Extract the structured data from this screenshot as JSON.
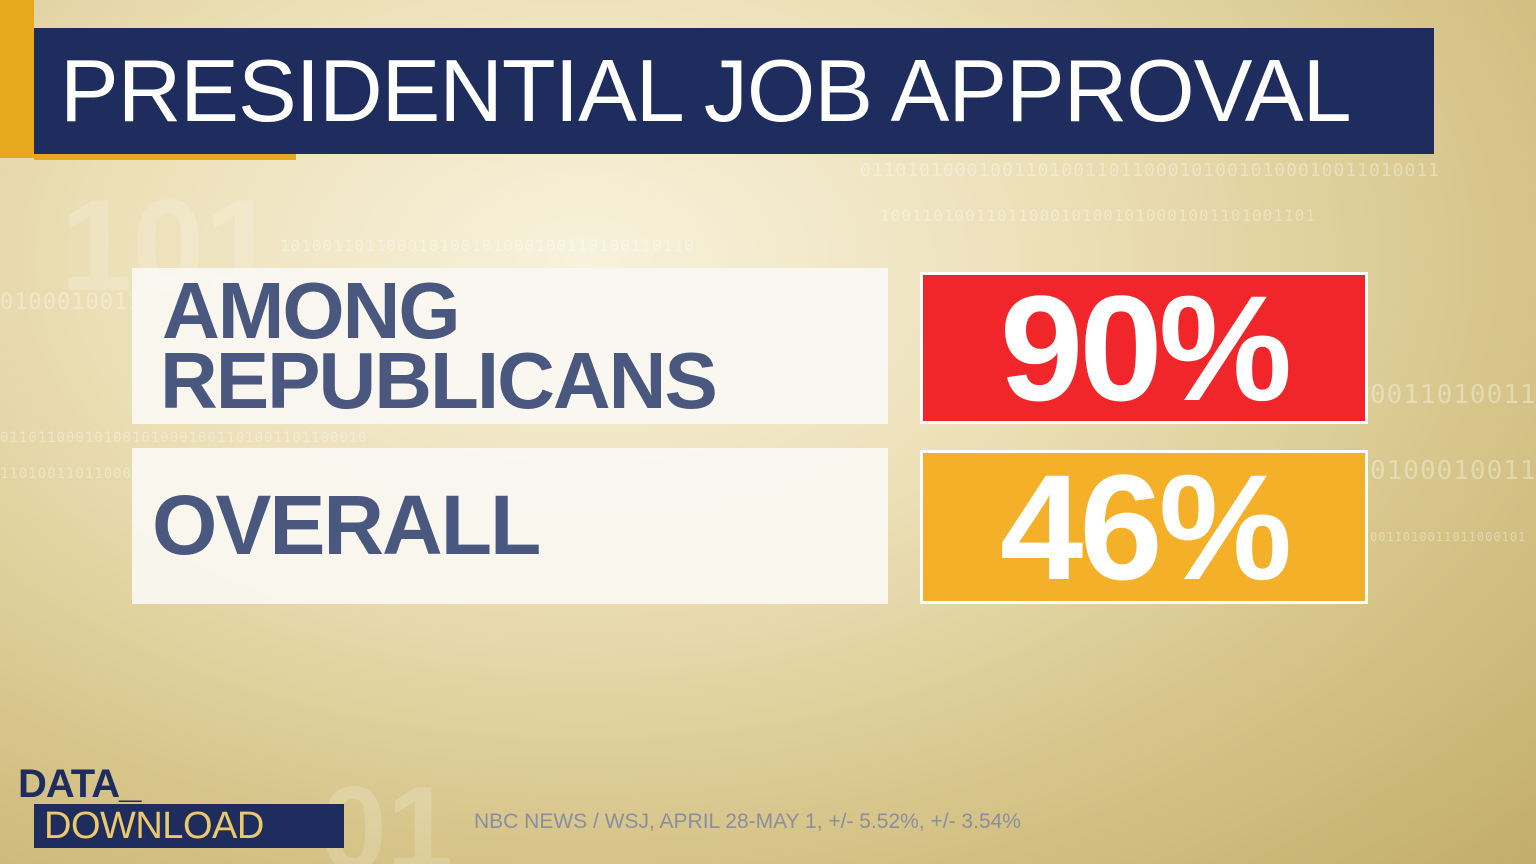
{
  "title": "PRESIDENTIAL JOB APPROVAL",
  "rows": [
    {
      "label_line1": "AMONG",
      "label_line2": "REPUBLICANS",
      "value": "90%",
      "value_color": "#f0262a"
    },
    {
      "label_line1": "OVERALL",
      "value": "46%",
      "value_color": "#f5b02a"
    }
  ],
  "logo": {
    "line1": "DATA_",
    "line2": "DOWNLOAD"
  },
  "source": "NBC NEWS / WSJ, APRIL 28-MAY 1, +/- 5.52%, +/- 3.54%",
  "colors": {
    "title_bar": "#1f2c5e",
    "accent": "#e6a81c",
    "label_text": "#4a587f"
  }
}
